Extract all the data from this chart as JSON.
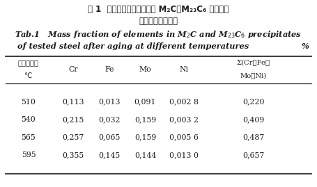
{
  "title_zh_1": "表 1  不同温度时效后试验钢 M",
  "title_zh_1b": "2",
  "title_zh_1c": "C＋M",
  "title_zh_1d": "23",
  "title_zh_1e": "C",
  "title_zh_1f": "6",
  "title_zh_1g": " 析出相中",
  "title_zh_2": "各元素的质量分数",
  "title_en1_a": "Tab",
  "title_en1_b": ".1   Mass fraction of elements in M",
  "title_en1_c": "2",
  "title_en1_d": "C and M",
  "title_en1_e": "23",
  "title_en1_f": "C",
  "title_en1_g": "6",
  "title_en1_h": " precipitates",
  "title_en2": "of tested steel after aging at different temperatures",
  "percent": "%",
  "col_h0a": "时效温度／",
  "col_h0b": "℃",
  "col_h1": "Cr",
  "col_h2": "Fe",
  "col_h3": "Mo",
  "col_h4": "Ni",
  "col_h5a": "Σ(Cr＋Fe＋",
  "col_h5b": "Mo＋Ni)",
  "rows": [
    [
      "510",
      "0,113",
      "0,013",
      "0,091",
      "0,002 8",
      "0,220"
    ],
    [
      "540",
      "0,215",
      "0,032",
      "0,159",
      "0,003 2",
      "0,409"
    ],
    [
      "565",
      "0,257",
      "0,065",
      "0,159",
      "0,005 6",
      "0,487"
    ],
    [
      "595",
      "0,355",
      "0,145",
      "0,144",
      "0,013 0",
      "0,657"
    ]
  ],
  "bg_color": "#ffffff",
  "text_color": "#1a1a1a",
  "line_color": "#2a2a2a"
}
